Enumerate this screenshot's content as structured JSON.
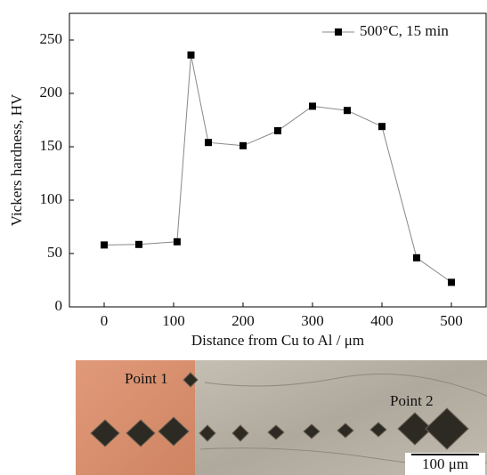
{
  "chart_data": {
    "type": "line",
    "xlabel": "Distance from Cu to Al / μm",
    "ylabel": "Vickers hardness, HV",
    "x": [
      0,
      50,
      105,
      125,
      150,
      200,
      250,
      300,
      350,
      400,
      450,
      500
    ],
    "series": [
      {
        "name": "500°C, 15 min",
        "color": "#888888",
        "marker_color": "#000000",
        "values": [
          58,
          58.5,
          61,
          236,
          154,
          151,
          165,
          188,
          184,
          169,
          46,
          23
        ]
      }
    ],
    "xlim": [
      -50,
      550
    ],
    "ylim": [
      0,
      275
    ],
    "xticks": [
      0,
      100,
      200,
      300,
      400,
      500
    ],
    "yticks": [
      0,
      50,
      100,
      150,
      200,
      250
    ],
    "grid": false,
    "legend": "upper right"
  },
  "micrograph": {
    "labels": [
      "Point 1",
      "Point 2"
    ],
    "scale_bar": "100 μm"
  }
}
